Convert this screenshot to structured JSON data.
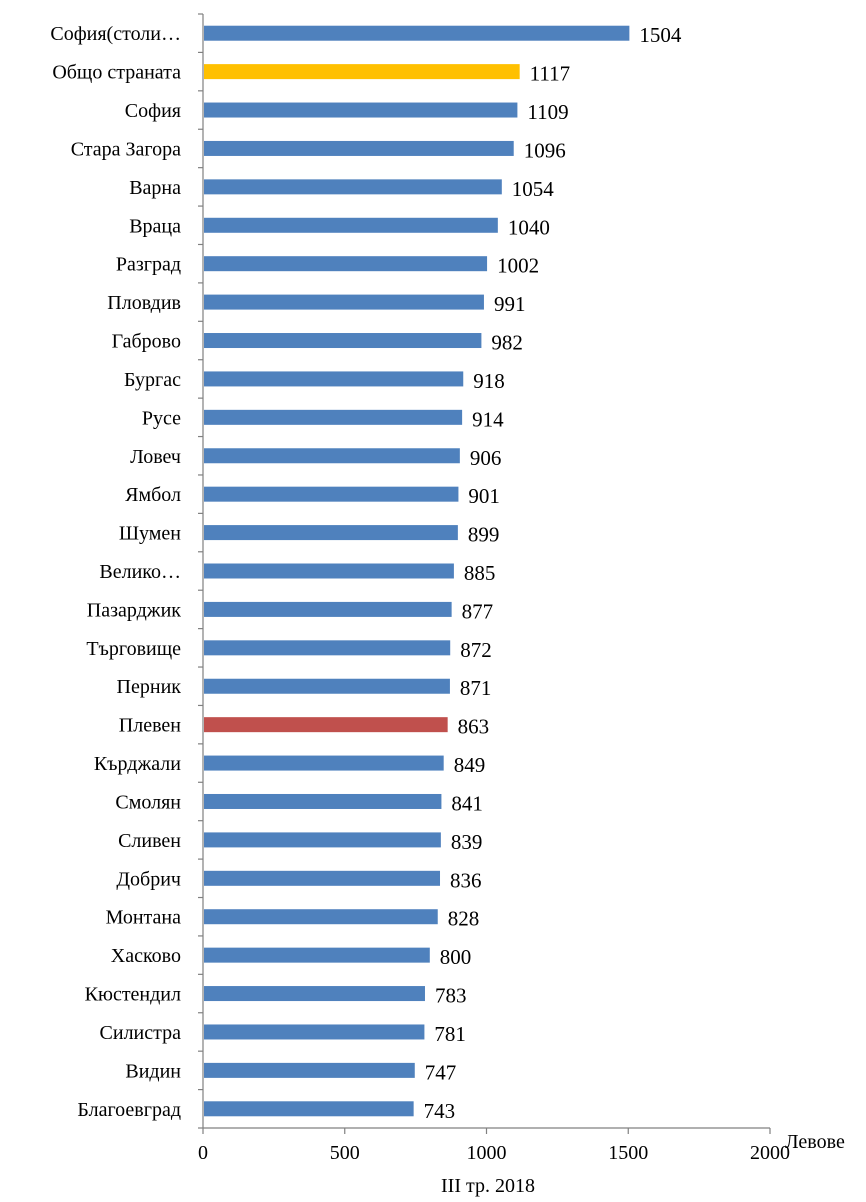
{
  "chart_data": {
    "type": "bar",
    "orientation": "horizontal",
    "title": "",
    "xlabel": "III тр. 2018",
    "unit": "Левове",
    "xlim": [
      0,
      2000
    ],
    "xticks": [
      0,
      500,
      1000,
      1500,
      2000
    ],
    "grid": false,
    "legend": "none",
    "colors": {
      "default": "#4F81BD",
      "highlight_total": "#FFC000",
      "highlight_pleven": "#C0504D"
    },
    "categories": [
      "София(столи…",
      "Общо страната",
      "София",
      "Стара Загора",
      "Варна",
      "Враца",
      "Разград",
      "Пловдив",
      "Габрово",
      "Бургас",
      "Русе",
      "Ловеч",
      "Ямбол",
      "Шумен",
      "Велико…",
      "Пазарджик",
      "Търговище",
      "Перник",
      "Плевен",
      "Кърджали",
      "Смолян",
      "Сливен",
      "Добрич",
      "Монтана",
      "Хасково",
      "Кюстендил",
      "Силистра",
      "Видин",
      "Благоевград"
    ],
    "values": [
      1504,
      1117,
      1109,
      1096,
      1054,
      1040,
      1002,
      991,
      982,
      918,
      914,
      906,
      901,
      899,
      885,
      877,
      872,
      871,
      863,
      849,
      841,
      839,
      836,
      828,
      800,
      783,
      781,
      747,
      743
    ],
    "bar_colors": [
      "default",
      "highlight_total",
      "default",
      "default",
      "default",
      "default",
      "default",
      "default",
      "default",
      "default",
      "default",
      "default",
      "default",
      "default",
      "default",
      "default",
      "default",
      "default",
      "highlight_pleven",
      "default",
      "default",
      "default",
      "default",
      "default",
      "default",
      "default",
      "default",
      "default",
      "default"
    ]
  }
}
